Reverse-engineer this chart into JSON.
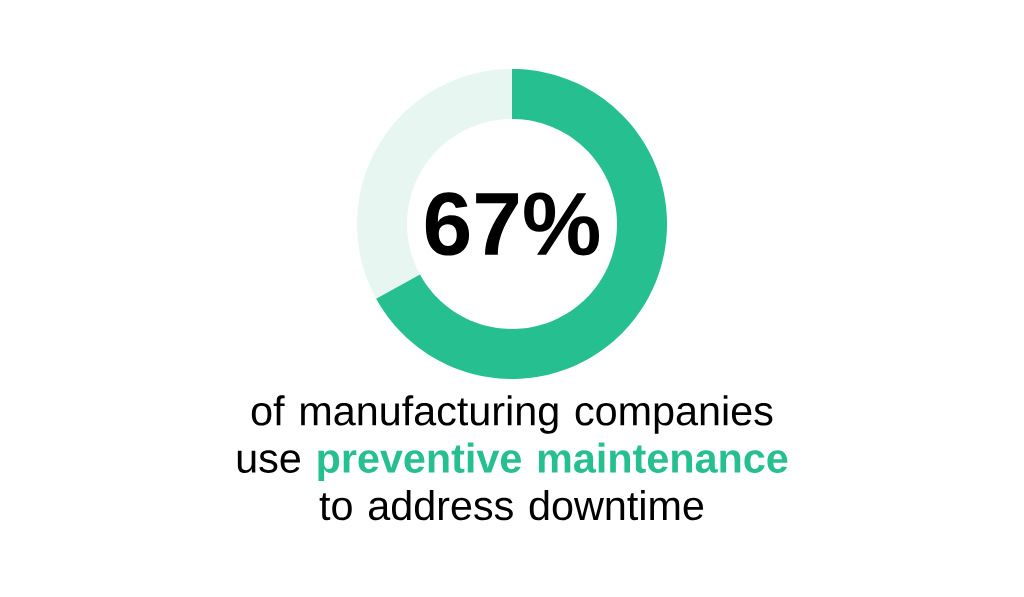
{
  "chart_data": {
    "type": "donut",
    "categories": [
      null,
      null
    ],
    "values": [
      67,
      33
    ],
    "colors": [
      "#26bf8f",
      "#e8f6f2"
    ],
    "value_labels": [
      "67%",
      null
    ],
    "subtitle": "of manufacturing companies use **preventive maintenance** to address downtime"
  }
}
